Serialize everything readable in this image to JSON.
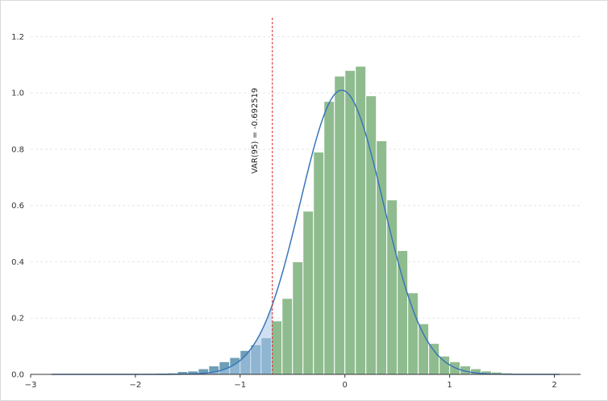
{
  "chart_data": {
    "type": "bar",
    "title": "",
    "xlabel": "",
    "ylabel": "",
    "xlim": [
      -3,
      2.25
    ],
    "ylim": [
      0,
      1.25
    ],
    "x_ticks": [
      -3,
      -2,
      -1,
      0,
      1,
      2
    ],
    "x_tick_labels": [
      "−3",
      "−2",
      "−1",
      "0",
      "1",
      "2"
    ],
    "y_ticks": [
      0,
      0.2,
      0.4,
      0.6,
      0.8,
      1.0,
      1.2
    ],
    "y_tick_labels": [
      "0.0",
      "0.2",
      "0.4",
      "0.6",
      "0.8",
      "1.0",
      "1.2"
    ],
    "grid": "horizontal dotted",
    "legend": "none",
    "histogram": {
      "bin_width": 0.1,
      "bins": [
        {
          "x0": -2.8,
          "h": 0.002
        },
        {
          "x0": -2.7,
          "h": 0.002
        },
        {
          "x0": -2.6,
          "h": 0.002
        },
        {
          "x0": -2.5,
          "h": 0.002
        },
        {
          "x0": -2.4,
          "h": 0.002
        },
        {
          "x0": -2.3,
          "h": 0.002
        },
        {
          "x0": -2.2,
          "h": 0.002
        },
        {
          "x0": -2.1,
          "h": 0.002
        },
        {
          "x0": -2.0,
          "h": 0.002
        },
        {
          "x0": -1.9,
          "h": 0.003
        },
        {
          "x0": -1.8,
          "h": 0.004
        },
        {
          "x0": -1.7,
          "h": 0.005
        },
        {
          "x0": -1.6,
          "h": 0.01
        },
        {
          "x0": -1.5,
          "h": 0.012
        },
        {
          "x0": -1.4,
          "h": 0.02
        },
        {
          "x0": -1.3,
          "h": 0.03
        },
        {
          "x0": -1.2,
          "h": 0.045
        },
        {
          "x0": -1.1,
          "h": 0.06
        },
        {
          "x0": -1.0,
          "h": 0.085
        },
        {
          "x0": -0.9,
          "h": 0.105
        },
        {
          "x0": -0.8,
          "h": 0.13
        },
        {
          "x0": -0.7,
          "h": 0.19
        },
        {
          "x0": -0.6,
          "h": 0.27
        },
        {
          "x0": -0.5,
          "h": 0.4
        },
        {
          "x0": -0.4,
          "h": 0.58
        },
        {
          "x0": -0.3,
          "h": 0.79
        },
        {
          "x0": -0.2,
          "h": 0.97
        },
        {
          "x0": -0.1,
          "h": 1.06
        },
        {
          "x0": 0.0,
          "h": 1.08
        },
        {
          "x0": 0.1,
          "h": 1.095
        },
        {
          "x0": 0.2,
          "h": 0.99
        },
        {
          "x0": 0.3,
          "h": 0.83
        },
        {
          "x0": 0.4,
          "h": 0.62
        },
        {
          "x0": 0.5,
          "h": 0.44
        },
        {
          "x0": 0.6,
          "h": 0.29
        },
        {
          "x0": 0.7,
          "h": 0.18
        },
        {
          "x0": 0.8,
          "h": 0.11
        },
        {
          "x0": 0.9,
          "h": 0.065
        },
        {
          "x0": 1.0,
          "h": 0.045
        },
        {
          "x0": 1.1,
          "h": 0.03
        },
        {
          "x0": 1.2,
          "h": 0.02
        },
        {
          "x0": 1.3,
          "h": 0.012
        },
        {
          "x0": 1.4,
          "h": 0.008
        },
        {
          "x0": 1.5,
          "h": 0.005
        },
        {
          "x0": 1.6,
          "h": 0.003
        },
        {
          "x0": 1.7,
          "h": 0.002
        },
        {
          "x0": 1.8,
          "h": 0.002
        },
        {
          "x0": 1.9,
          "h": 0.002
        },
        {
          "x0": 2.0,
          "h": 0.002
        }
      ],
      "color": "#8fbc8f",
      "tail_color": "#6e9fb8"
    },
    "density_curve": {
      "type": "normal",
      "mean": -0.03,
      "sd": 0.395,
      "x_range": [
        -2.8,
        2.05
      ],
      "color": "#3a76b8",
      "fill_below_var_color": "#a9c6e6"
    },
    "var_line": {
      "x": -0.692519,
      "label": "VAR(95) = -0.692519",
      "color": "#d62728"
    }
  },
  "colors": {
    "axis": "#333333",
    "grid": "#e6e6e6"
  }
}
